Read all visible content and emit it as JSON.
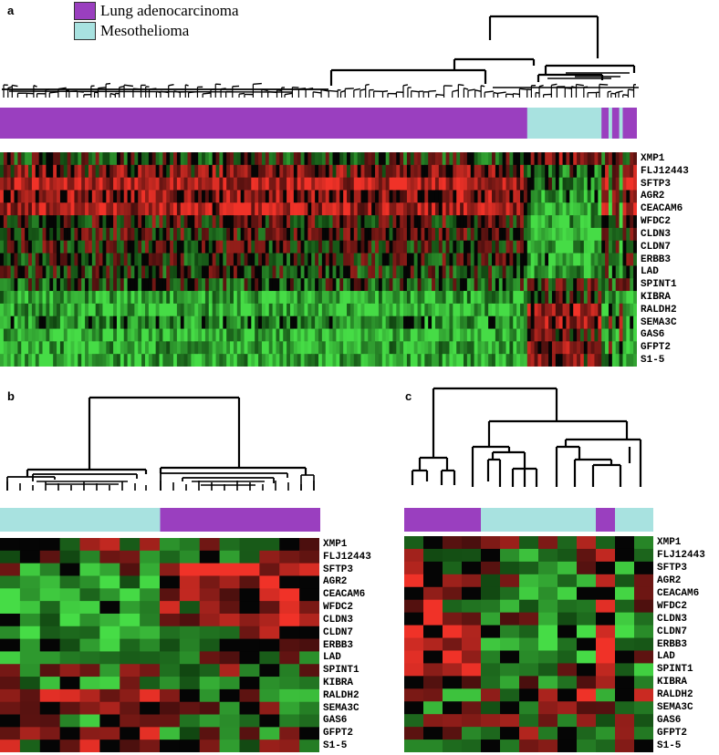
{
  "colors": {
    "lung_adenocarcinoma": "#9a3fbf",
    "mesothelioma": "#a8e2e0",
    "up": "#e83a2a",
    "down": "#4fd64f",
    "neutral": "#000000"
  },
  "legend": [
    {
      "label": "Lung adenocarcinoma",
      "color": "#9a3fbf"
    },
    {
      "label": "Mesothelioma",
      "color": "#a8e2e0"
    }
  ],
  "genes": [
    "XMP1",
    "FLJ12443",
    "SFTP3",
    "AGR2",
    "CEACAM6",
    "WFDC2",
    "CLDN3",
    "CLDN7",
    "ERBB3",
    "LAD",
    "SPINT1",
    "KIBRA",
    "RALDH2",
    "SEMA3C",
    "GAS6",
    "GFPT2",
    "S1-5"
  ],
  "panels": [
    {
      "id": "a",
      "letter": "a",
      "columns": 180,
      "groups": [
        {
          "class": "lung_adenocarcinoma",
          "count": 149
        },
        {
          "class": "mesothelioma",
          "count": 21
        },
        {
          "class": "lung_adenocarcinoma",
          "count": 2
        },
        {
          "class": "mesothelioma",
          "count": 1
        },
        {
          "class": "lung_adenocarcinoma",
          "count": 2
        },
        {
          "class": "mesothelioma",
          "count": 1
        },
        {
          "class": "lung_adenocarcinoma",
          "count": 4
        }
      ]
    },
    {
      "id": "b",
      "letter": "b",
      "columns": 16,
      "groups": [
        {
          "class": "mesothelioma",
          "count": 8
        },
        {
          "class": "lung_adenocarcinoma",
          "count": 8
        }
      ]
    },
    {
      "id": "c",
      "letter": "c",
      "columns": 13,
      "groups": [
        {
          "class": "lung_adenocarcinoma",
          "count": 4
        },
        {
          "class": "mesothelioma",
          "count": 6
        },
        {
          "class": "lung_adenocarcinoma",
          "count": 1
        },
        {
          "class": "mesothelioma",
          "count": 2
        }
      ]
    }
  ]
}
